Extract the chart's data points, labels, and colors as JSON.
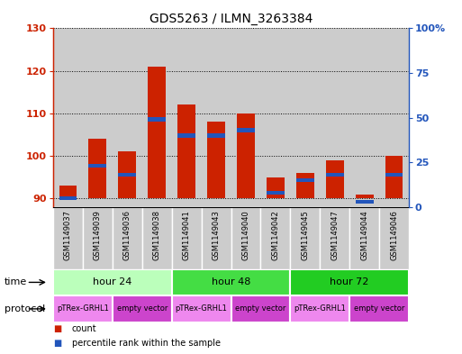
{
  "title": "GDS5263 / ILMN_3263384",
  "samples": [
    "GSM1149037",
    "GSM1149039",
    "GSM1149036",
    "GSM1149038",
    "GSM1149041",
    "GSM1149043",
    "GSM1149040",
    "GSM1149042",
    "GSM1149045",
    "GSM1149047",
    "GSM1149044",
    "GSM1149046"
  ],
  "counts": [
    93,
    104,
    101,
    121,
    112,
    108,
    110,
    95,
    96,
    99,
    91,
    100
  ],
  "percentile_ranks": [
    5,
    23,
    18,
    49,
    40,
    40,
    43,
    8,
    15,
    18,
    3,
    18
  ],
  "bar_bottom": 90,
  "ylim_left": [
    88,
    130
  ],
  "ylim_right": [
    0,
    100
  ],
  "yticks_left": [
    90,
    100,
    110,
    120,
    130
  ],
  "yticks_right": [
    0,
    25,
    50,
    75,
    100
  ],
  "yticklabels_left": [
    "90",
    "100",
    "110",
    "120",
    "130"
  ],
  "yticklabels_right": [
    "0",
    "25",
    "50",
    "75",
    "100%"
  ],
  "bar_color": "#cc2200",
  "percentile_color": "#2255bb",
  "time_groups": [
    {
      "label": "hour 24",
      "start": 0,
      "end": 4,
      "color": "#bbffbb"
    },
    {
      "label": "hour 48",
      "start": 4,
      "end": 8,
      "color": "#44dd44"
    },
    {
      "label": "hour 72",
      "start": 8,
      "end": 12,
      "color": "#22cc22"
    }
  ],
  "protocol_groups": [
    {
      "label": "pTRex-GRHL1",
      "start": 0,
      "end": 2,
      "color": "#ee88ee"
    },
    {
      "label": "empty vector",
      "start": 2,
      "end": 4,
      "color": "#cc44cc"
    },
    {
      "label": "pTRex-GRHL1",
      "start": 4,
      "end": 6,
      "color": "#ee88ee"
    },
    {
      "label": "empty vector",
      "start": 6,
      "end": 8,
      "color": "#cc44cc"
    },
    {
      "label": "pTRex-GRHL1",
      "start": 8,
      "end": 10,
      "color": "#ee88ee"
    },
    {
      "label": "empty vector",
      "start": 10,
      "end": 12,
      "color": "#cc44cc"
    }
  ],
  "time_label": "time",
  "protocol_label": "protocol",
  "legend_items": [
    {
      "label": "count",
      "color": "#cc2200"
    },
    {
      "label": "percentile rank within the sample",
      "color": "#2255bb"
    }
  ],
  "background_color": "#ffffff",
  "grid_color": "#000000",
  "tick_color_left": "#cc2200",
  "tick_color_right": "#2255bb",
  "sample_bg_color": "#cccccc"
}
